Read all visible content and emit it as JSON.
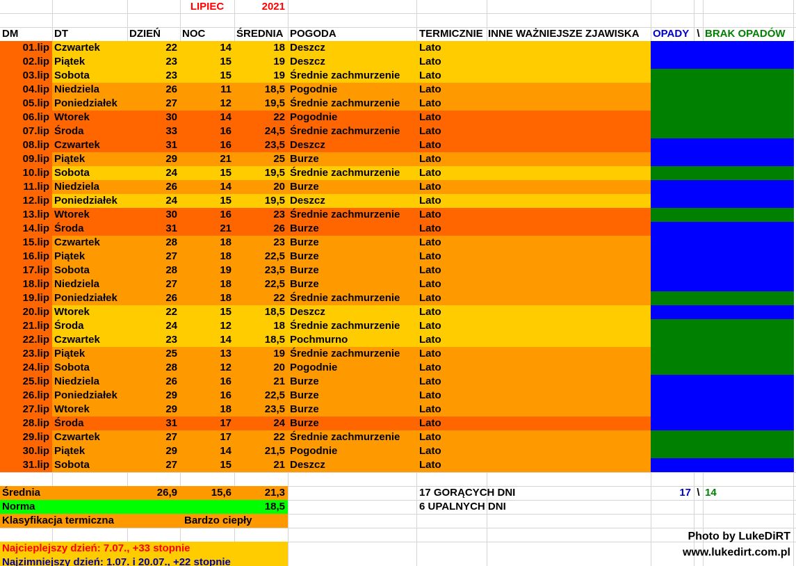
{
  "header": {
    "month": "LIPIEC",
    "year": "2021"
  },
  "columns": {
    "dm": "DM",
    "dt": "DT",
    "day": "DZIEŃ",
    "night": "NOC",
    "avg": "ŚREDNIA",
    "weather": "POGODA",
    "thermal": "TERMICZNIE",
    "phenomena": "INNE WAŻNIEJSZE ZJAWISKA",
    "precip": "OPADY",
    "sep": "\\",
    "no_precip": "BRAK OPADÓW"
  },
  "colors": {
    "hot": "#ff6600",
    "warm": "#ff9900",
    "mild": "#ffcc00",
    "precip": "#0000ff",
    "no_precip": "#008000",
    "norma": "#00ff00",
    "red_text": "#ff0000",
    "blue_text": "#0000cc",
    "green_text": "#008000"
  },
  "rows": [
    {
      "dm": "01.lip",
      "dt": "Czwartek",
      "day": "22",
      "night": "14",
      "avg": "18",
      "weather": "Deszcz",
      "thermal": "Lato",
      "tier": "mild",
      "precip": true
    },
    {
      "dm": "02.lip",
      "dt": "Piątek",
      "day": "23",
      "night": "15",
      "avg": "19",
      "weather": "Deszcz",
      "thermal": "Lato",
      "tier": "mild",
      "precip": true
    },
    {
      "dm": "03.lip",
      "dt": "Sobota",
      "day": "23",
      "night": "15",
      "avg": "19",
      "weather": "Średnie zachmurzenie",
      "thermal": "Lato",
      "tier": "mild",
      "precip": false
    },
    {
      "dm": "04.lip",
      "dt": "Niedziela",
      "day": "26",
      "night": "11",
      "avg": "18,5",
      "weather": "Pogodnie",
      "thermal": "Lato",
      "tier": "warm",
      "precip": false
    },
    {
      "dm": "05.lip",
      "dt": "Poniedziałek",
      "day": "27",
      "night": "12",
      "avg": "19,5",
      "weather": "Średnie zachmurzenie",
      "thermal": "Lato",
      "tier": "warm",
      "precip": false
    },
    {
      "dm": "06.lip",
      "dt": "Wtorek",
      "day": "30",
      "night": "14",
      "avg": "22",
      "weather": "Pogodnie",
      "thermal": "Lato",
      "tier": "hot",
      "precip": false
    },
    {
      "dm": "07.lip",
      "dt": "Środa",
      "day": "33",
      "night": "16",
      "avg": "24,5",
      "weather": "Średnie zachmurzenie",
      "thermal": "Lato",
      "tier": "hot",
      "precip": false
    },
    {
      "dm": "08.lip",
      "dt": "Czwartek",
      "day": "31",
      "night": "16",
      "avg": "23,5",
      "weather": "Deszcz",
      "thermal": "Lato",
      "tier": "hot",
      "precip": true
    },
    {
      "dm": "09.lip",
      "dt": "Piątek",
      "day": "29",
      "night": "21",
      "avg": "25",
      "weather": "Burze",
      "thermal": "Lato",
      "tier": "warm",
      "precip": true
    },
    {
      "dm": "10.lip",
      "dt": "Sobota",
      "day": "24",
      "night": "15",
      "avg": "19,5",
      "weather": "Średnie zachmurzenie",
      "thermal": "Lato",
      "tier": "mild",
      "precip": false
    },
    {
      "dm": "11.lip",
      "dt": "Niedziela",
      "day": "26",
      "night": "14",
      "avg": "20",
      "weather": "Burze",
      "thermal": "Lato",
      "tier": "warm",
      "precip": true
    },
    {
      "dm": "12.lip",
      "dt": "Poniedziałek",
      "day": "24",
      "night": "15",
      "avg": "19,5",
      "weather": "Deszcz",
      "thermal": "Lato",
      "tier": "mild",
      "precip": true
    },
    {
      "dm": "13.lip",
      "dt": "Wtorek",
      "day": "30",
      "night": "16",
      "avg": "23",
      "weather": "Średnie zachmurzenie",
      "thermal": "Lato",
      "tier": "hot",
      "precip": false
    },
    {
      "dm": "14.lip",
      "dt": "Środa",
      "day": "31",
      "night": "21",
      "avg": "26",
      "weather": "Burze",
      "thermal": "Lato",
      "tier": "hot",
      "precip": true
    },
    {
      "dm": "15.lip",
      "dt": "Czwartek",
      "day": "28",
      "night": "18",
      "avg": "23",
      "weather": "Burze",
      "thermal": "Lato",
      "tier": "warm",
      "precip": true
    },
    {
      "dm": "16.lip",
      "dt": "Piątek",
      "day": "27",
      "night": "18",
      "avg": "22,5",
      "weather": "Burze",
      "thermal": "Lato",
      "tier": "warm",
      "precip": true
    },
    {
      "dm": "17.lip",
      "dt": "Sobota",
      "day": "28",
      "night": "19",
      "avg": "23,5",
      "weather": "Burze",
      "thermal": "Lato",
      "tier": "warm",
      "precip": true
    },
    {
      "dm": "18.lip",
      "dt": "Niedziela",
      "day": "27",
      "night": "18",
      "avg": "22,5",
      "weather": "Burze",
      "thermal": "Lato",
      "tier": "warm",
      "precip": true
    },
    {
      "dm": "19.lip",
      "dt": "Poniedziałek",
      "day": "26",
      "night": "18",
      "avg": "22",
      "weather": "Średnie zachmurzenie",
      "thermal": "Lato",
      "tier": "warm",
      "precip": false
    },
    {
      "dm": "20.lip",
      "dt": "Wtorek",
      "day": "22",
      "night": "15",
      "avg": "18,5",
      "weather": "Deszcz",
      "thermal": "Lato",
      "tier": "mild",
      "precip": true
    },
    {
      "dm": "21.lip",
      "dt": "Środa",
      "day": "24",
      "night": "12",
      "avg": "18",
      "weather": "Średnie zachmurzenie",
      "thermal": "Lato",
      "tier": "mild",
      "precip": false
    },
    {
      "dm": "22.lip",
      "dt": "Czwartek",
      "day": "23",
      "night": "14",
      "avg": "18,5",
      "weather": "Pochmurno",
      "thermal": "Lato",
      "tier": "mild",
      "precip": false
    },
    {
      "dm": "23.lip",
      "dt": "Piątek",
      "day": "25",
      "night": "13",
      "avg": "19",
      "weather": "Średnie zachmurzenie",
      "thermal": "Lato",
      "tier": "warm",
      "precip": false
    },
    {
      "dm": "24.lip",
      "dt": "Sobota",
      "day": "28",
      "night": "12",
      "avg": "20",
      "weather": "Pogodnie",
      "thermal": "Lato",
      "tier": "warm",
      "precip": false
    },
    {
      "dm": "25.lip",
      "dt": "Niedziela",
      "day": "26",
      "night": "16",
      "avg": "21",
      "weather": "Burze",
      "thermal": "Lato",
      "tier": "warm",
      "precip": true
    },
    {
      "dm": "26.lip",
      "dt": "Poniedziałek",
      "day": "29",
      "night": "16",
      "avg": "22,5",
      "weather": "Burze",
      "thermal": "Lato",
      "tier": "warm",
      "precip": true
    },
    {
      "dm": "27.lip",
      "dt": "Wtorek",
      "day": "29",
      "night": "18",
      "avg": "23,5",
      "weather": "Burze",
      "thermal": "Lato",
      "tier": "warm",
      "precip": true
    },
    {
      "dm": "28.lip",
      "dt": "Środa",
      "day": "31",
      "night": "17",
      "avg": "24",
      "weather": "Burze",
      "thermal": "Lato",
      "tier": "hot",
      "precip": true
    },
    {
      "dm": "29.lip",
      "dt": "Czwartek",
      "day": "27",
      "night": "17",
      "avg": "22",
      "weather": "Średnie zachmurzenie",
      "thermal": "Lato",
      "tier": "warm",
      "precip": false
    },
    {
      "dm": "30.lip",
      "dt": "Piątek",
      "day": "29",
      "night": "14",
      "avg": "21,5",
      "weather": "Pogodnie",
      "thermal": "Lato",
      "tier": "warm",
      "precip": false
    },
    {
      "dm": "31.lip",
      "dt": "Sobota",
      "day": "27",
      "night": "15",
      "avg": "21",
      "weather": "Deszcz",
      "thermal": "Lato",
      "tier": "warm",
      "precip": true
    }
  ],
  "summary": {
    "avg_label": "Średnia",
    "avg_day": "26,9",
    "avg_night": "15,6",
    "avg_avg": "21,3",
    "norma_label": "Norma",
    "norma_value": "18,5",
    "class_label": "Klasyfikacja termiczna",
    "class_value": "Bardzo ciepły",
    "hot_days": "17 GORĄCYCH DNI",
    "very_hot_days": "6 UPALNYCH DNI",
    "precip_count": "17",
    "sep": "\\",
    "no_precip_count": "14",
    "warmest": "Najcieplejszy dzień: 7.07., +33 stopnie",
    "coldest": "Najzimniejszy dzień: 1.07. i 20.07., +22 stopnie"
  },
  "credits": {
    "photo": "Photo by LukeDiRT",
    "site": "www.lukedirt.com.pl"
  }
}
